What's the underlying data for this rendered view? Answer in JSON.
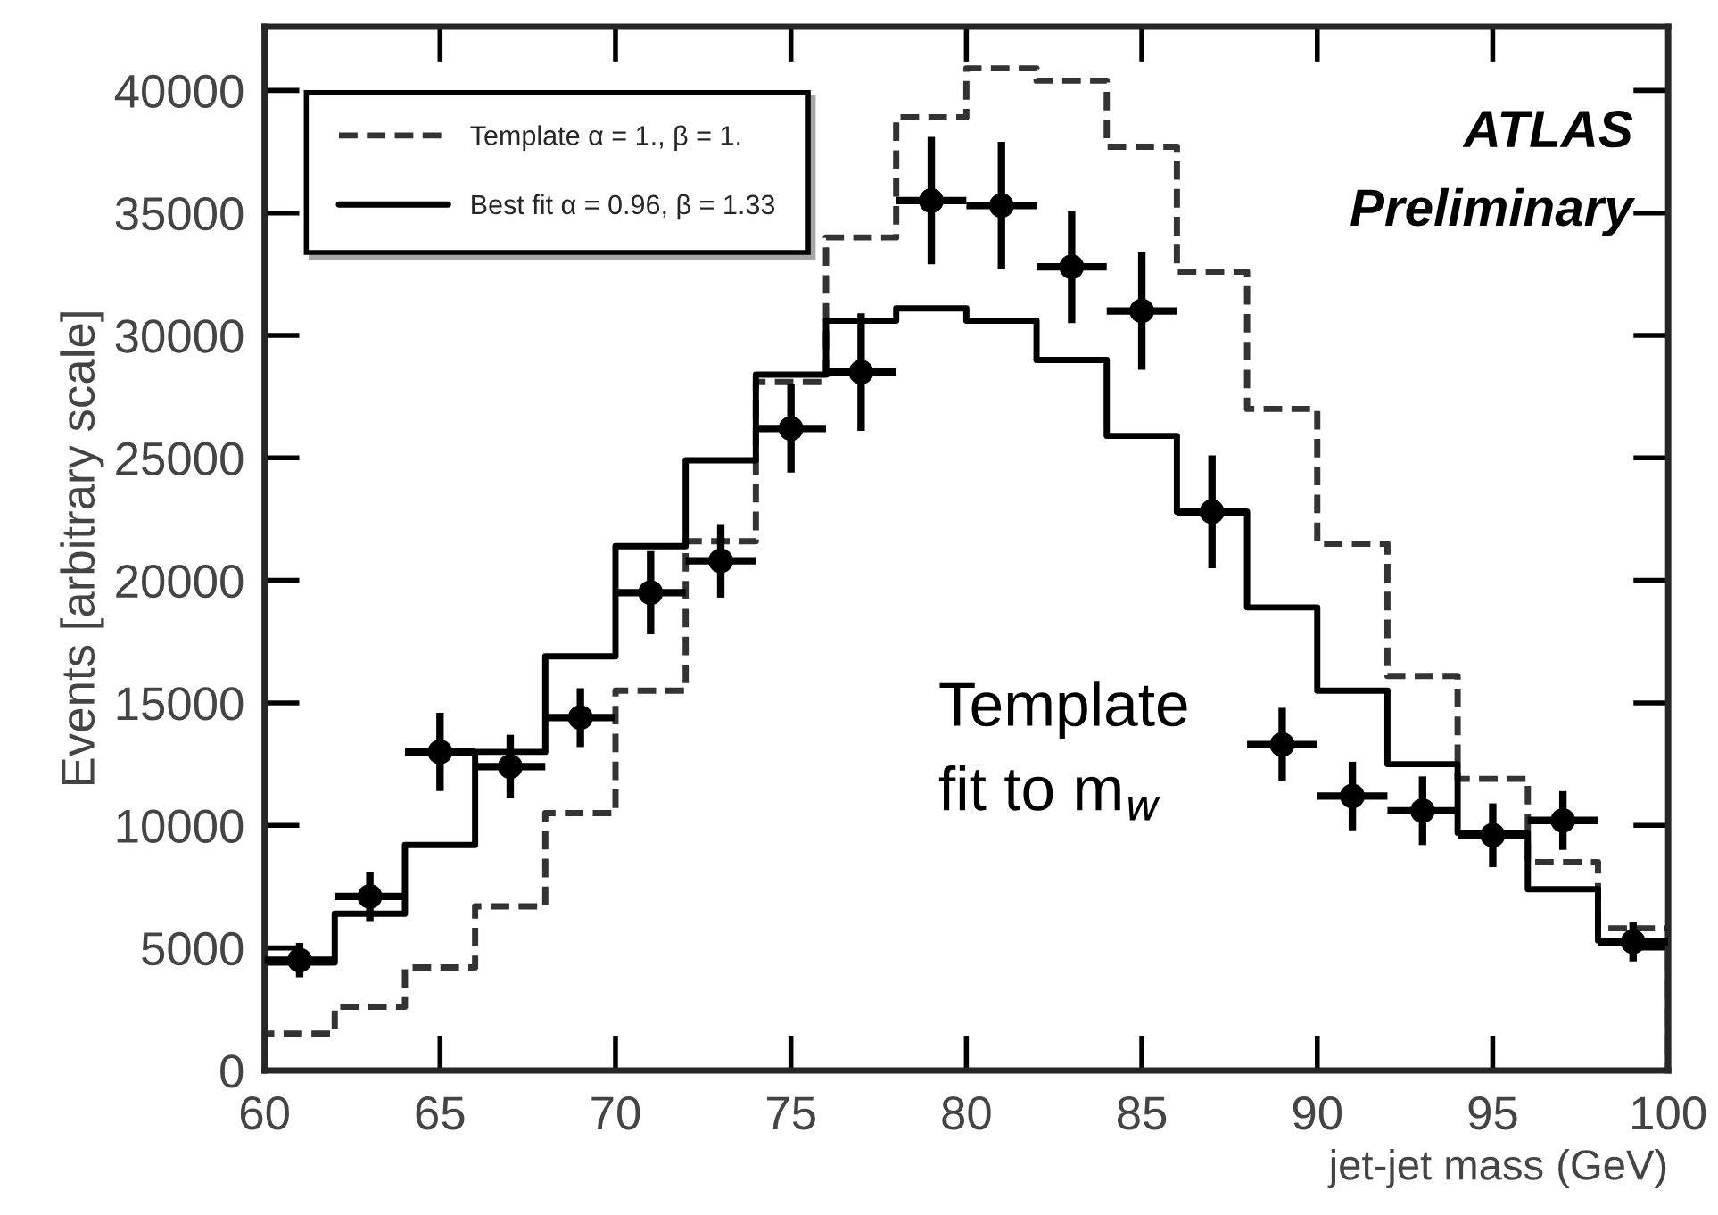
{
  "chart_data": {
    "type": "histogram",
    "xlabel": "jet-jet mass (GeV)",
    "ylabel": "Events [arbitrary scale]",
    "bins": [
      60,
      62,
      64,
      66,
      68,
      70,
      72,
      74,
      76,
      78,
      80,
      82,
      84,
      86,
      88,
      90,
      92,
      94,
      96,
      98,
      100
    ],
    "series": [
      {
        "name": "Template α = 1., β = 1.",
        "color": "#333333",
        "line_style": "dashed",
        "values": [
          1500,
          2600,
          4200,
          6700,
          10500,
          15500,
          21600,
          28100,
          34000,
          38900,
          40900,
          40400,
          37700,
          32600,
          27000,
          21500,
          16100,
          11900,
          8500,
          5800
        ]
      },
      {
        "name": "Best fit α = 0.96, β = 1.33",
        "color": "#000000",
        "line_style": "solid",
        "values": [
          4400,
          6400,
          9200,
          13000,
          16900,
          21400,
          24900,
          28400,
          30600,
          31100,
          30600,
          29000,
          25900,
          22800,
          18900,
          15500,
          12500,
          9700,
          7400,
          5300
        ]
      },
      {
        "type": "scatter",
        "color": "#000000",
        "marker": "circle",
        "x": [
          61,
          63,
          65,
          67,
          69,
          71,
          73,
          75,
          77,
          79,
          81,
          83,
          85,
          87,
          89,
          91,
          93,
          95,
          97,
          99
        ],
        "values": [
          4500,
          7100,
          13000,
          12400,
          14400,
          19500,
          20800,
          26200,
          28500,
          35500,
          35300,
          32800,
          31000,
          22800,
          13300,
          11200,
          10600,
          9600,
          10200,
          5250
        ],
        "errors": [
          700,
          1000,
          1600,
          1300,
          1200,
          1700,
          1500,
          1800,
          2400,
          2600,
          2600,
          2300,
          2400,
          2300,
          1500,
          1400,
          1400,
          1300,
          1200,
          800
        ],
        "xerrors": [
          1,
          1,
          1,
          1,
          1,
          1,
          1,
          1,
          1,
          1,
          1,
          1,
          1,
          1,
          1,
          1,
          1,
          1,
          1,
          1
        ]
      }
    ],
    "xlim": [
      60,
      100
    ],
    "xticks": [
      60,
      65,
      70,
      75,
      80,
      85,
      90,
      95,
      100
    ],
    "ylim": [
      0,
      42600
    ],
    "yticks": [
      0,
      5000,
      10000,
      15000,
      20000,
      25000,
      30000,
      35000,
      40000
    ],
    "legend": "top left",
    "grid": false,
    "annotations": [
      "ATLAS Preliminary",
      "Template fit to m$_{w}$"
    ]
  }
}
